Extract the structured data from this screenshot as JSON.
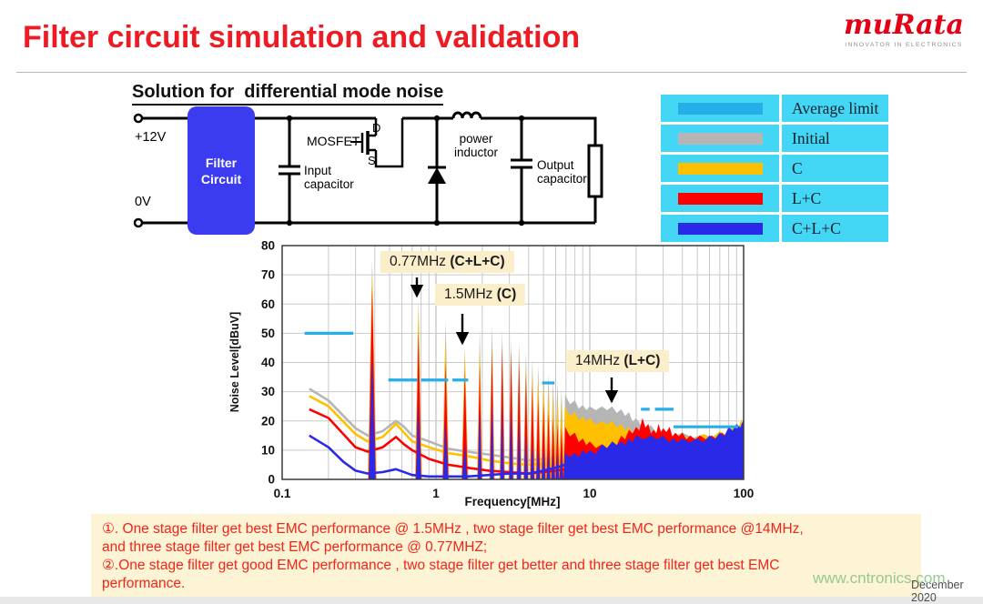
{
  "slide": {
    "title": "Filter circuit simulation and validation",
    "heading": "Solution for  differential mode noise"
  },
  "logo": {
    "brand": "muRata",
    "tagline": "INNOVATOR IN ELECTRONICS"
  },
  "circuit": {
    "labels": {
      "v_plus": "+12V",
      "v_zero": "0V",
      "filter_line1": "Filter",
      "filter_line2": "Circuit",
      "mosfet": "MOSFET",
      "drain": "D",
      "source": "S",
      "input_cap_line1": "Input",
      "input_cap_line2": "capacitor",
      "inductor_line1": "power",
      "inductor_line2": "inductor",
      "output_cap_line1": "Output",
      "output_cap_line2": "capacitor"
    },
    "filter_box_color": "#3b3bf0"
  },
  "legend": {
    "cell_bg": "#43d6f5",
    "rows": [
      {
        "label": "Average limit",
        "color": "#25aee8"
      },
      {
        "label": "Initial",
        "color": "#b5b5b5"
      },
      {
        "label": "C",
        "color": "#ffc002"
      },
      {
        "label": "L+C",
        "color": "#fe0000"
      },
      {
        "label": "C+L+C",
        "color": "#2b29e8"
      }
    ]
  },
  "chart_data": {
    "type": "line",
    "xlabel": "Frequency[MHz]",
    "ylabel": "Noise Level[dBuV]",
    "xscale": "log",
    "xlim": [
      0.1,
      100
    ],
    "ylim": [
      0,
      80
    ],
    "xticks": [
      "0.1",
      "1",
      "10",
      "100"
    ],
    "yticks": [
      0,
      10,
      20,
      30,
      40,
      50,
      60,
      70,
      80
    ],
    "grid": true,
    "switching_fundamental_mhz": 0.385,
    "series_colors": {
      "initial": "#b5b5b5",
      "c": "#ffc002",
      "lc": "#fe0000",
      "clc": "#2b29e8",
      "limit": "#25aee8"
    },
    "average_limit_segments_dbuv": [
      {
        "f1": 0.14,
        "f2": 0.29,
        "db": 50
      },
      {
        "f1": 0.49,
        "f2": 0.76,
        "db": 34
      },
      {
        "f1": 0.8,
        "f2": 1.2,
        "db": 34
      },
      {
        "f1": 1.28,
        "f2": 1.62,
        "db": 34
      },
      {
        "f1": 4.9,
        "f2": 5.9,
        "db": 33
      },
      {
        "f1": 21.5,
        "f2": 24.5,
        "db": 24
      },
      {
        "f1": 26.5,
        "f2": 35,
        "db": 24
      },
      {
        "f1": 35,
        "f2": 92,
        "db": 18
      }
    ],
    "series": [
      {
        "name": "Initial",
        "key": "initial",
        "floor_dbuv": [
          [
            0.15,
            31
          ],
          [
            0.2,
            27
          ],
          [
            0.3,
            17.5
          ],
          [
            0.36,
            15
          ],
          [
            0.45,
            16.5
          ],
          [
            0.55,
            20
          ],
          [
            0.62,
            18
          ],
          [
            0.7,
            15
          ],
          [
            0.9,
            13
          ],
          [
            1.2,
            10.5
          ],
          [
            1.6,
            9.5
          ],
          [
            2.2,
            8.5
          ],
          [
            3,
            7.5
          ],
          [
            4,
            6.5
          ],
          [
            5,
            7
          ],
          [
            6,
            7.5
          ],
          [
            6.9,
            8
          ]
        ],
        "harmonic_peaks_dbuv": [
          75,
          61,
          54,
          45,
          51,
          53,
          51,
          48,
          47,
          44,
          41,
          39,
          38,
          36,
          34,
          33,
          31,
          29
        ],
        "dense_envelope_dbuv": [
          [
            6.9,
            29
          ],
          [
            8,
            27
          ],
          [
            9,
            25.5
          ],
          [
            10,
            25
          ],
          [
            12,
            25
          ],
          [
            14,
            25
          ],
          [
            16,
            24
          ],
          [
            18,
            23
          ],
          [
            20,
            21
          ],
          [
            25,
            18.5
          ],
          [
            30,
            17
          ],
          [
            40,
            16
          ],
          [
            55,
            15.5
          ],
          [
            70,
            16
          ],
          [
            85,
            17.5
          ],
          [
            97,
            20
          ],
          [
            100,
            21
          ]
        ]
      },
      {
        "name": "C",
        "key": "c",
        "floor_dbuv": [
          [
            0.15,
            28.5
          ],
          [
            0.2,
            25
          ],
          [
            0.3,
            15.5
          ],
          [
            0.36,
            13
          ],
          [
            0.45,
            14.5
          ],
          [
            0.55,
            19
          ],
          [
            0.62,
            16
          ],
          [
            0.7,
            13
          ],
          [
            0.9,
            11
          ],
          [
            1.2,
            9
          ],
          [
            1.6,
            8
          ],
          [
            2.2,
            6.5
          ],
          [
            3,
            5.5
          ],
          [
            4,
            5
          ],
          [
            5,
            5.5
          ],
          [
            6,
            6
          ],
          [
            6.9,
            6.5
          ]
        ],
        "harmonic_peaks_dbuv": [
          72,
          59.5,
          49,
          44,
          46,
          47,
          46,
          44,
          42,
          40,
          37,
          35,
          34,
          32,
          30,
          29,
          27,
          25
        ],
        "dense_envelope_dbuv": [
          [
            6.9,
            25
          ],
          [
            8,
            23
          ],
          [
            9,
            21.5
          ],
          [
            10,
            21
          ],
          [
            12,
            20
          ],
          [
            14,
            20
          ],
          [
            16,
            19
          ],
          [
            18,
            18
          ],
          [
            20,
            17
          ],
          [
            25,
            15.5
          ],
          [
            30,
            14.5
          ],
          [
            40,
            15
          ],
          [
            55,
            15.5
          ],
          [
            70,
            16.5
          ],
          [
            85,
            18
          ],
          [
            97,
            20.5
          ],
          [
            100,
            21.5
          ]
        ]
      },
      {
        "name": "L+C",
        "key": "lc",
        "floor_dbuv": [
          [
            0.15,
            24
          ],
          [
            0.2,
            21
          ],
          [
            0.3,
            11
          ],
          [
            0.36,
            9.5
          ],
          [
            0.45,
            11
          ],
          [
            0.55,
            14.5
          ],
          [
            0.62,
            12
          ],
          [
            0.7,
            10
          ],
          [
            0.9,
            7
          ],
          [
            1.2,
            5
          ],
          [
            1.6,
            4
          ],
          [
            2.2,
            3
          ],
          [
            3,
            2.5
          ],
          [
            4,
            2
          ],
          [
            5,
            2.5
          ],
          [
            6,
            3
          ],
          [
            6.9,
            3.5
          ]
        ],
        "harmonic_peaks_dbuv": [
          66,
          51,
          40,
          37,
          39,
          45,
          46,
          44,
          41,
          36,
          32,
          28,
          26,
          23,
          21,
          19,
          18,
          18
        ],
        "dense_envelope_dbuv": [
          [
            6.9,
            18
          ],
          [
            8,
            16
          ],
          [
            9,
            14
          ],
          [
            10,
            13
          ],
          [
            12,
            12
          ],
          [
            14,
            13
          ],
          [
            16,
            15
          ],
          [
            18,
            17
          ],
          [
            20,
            18
          ],
          [
            22,
            21
          ],
          [
            24,
            19
          ],
          [
            26,
            17
          ],
          [
            28,
            19
          ],
          [
            30,
            17.5
          ],
          [
            33,
            18
          ],
          [
            36,
            16
          ],
          [
            40,
            16
          ],
          [
            45,
            15
          ],
          [
            52,
            15
          ],
          [
            62,
            15
          ],
          [
            72,
            16
          ],
          [
            82,
            17
          ],
          [
            92,
            18.5
          ],
          [
            100,
            20
          ]
        ]
      },
      {
        "name": "C+L+C",
        "key": "clc",
        "floor_dbuv": [
          [
            0.15,
            15
          ],
          [
            0.2,
            11
          ],
          [
            0.25,
            6
          ],
          [
            0.3,
            3
          ],
          [
            0.36,
            2
          ],
          [
            0.45,
            2.5
          ],
          [
            0.55,
            3.5
          ],
          [
            0.7,
            1.5
          ],
          [
            0.9,
            1
          ],
          [
            1.2,
            1
          ],
          [
            1.6,
            1
          ],
          [
            2.2,
            1.5
          ],
          [
            3,
            2
          ],
          [
            4,
            2
          ],
          [
            5,
            3
          ],
          [
            6,
            4
          ],
          [
            6.9,
            5
          ]
        ],
        "harmonic_peaks_dbuv": [
          41,
          27,
          20,
          12,
          24,
          26,
          25,
          24,
          20,
          16,
          12,
          10,
          10,
          9,
          9,
          9,
          9,
          9
        ],
        "dense_envelope_dbuv": [
          [
            6.9,
            9
          ],
          [
            8,
            9
          ],
          [
            9,
            10
          ],
          [
            10,
            10
          ],
          [
            12,
            12
          ],
          [
            14,
            13
          ],
          [
            16,
            13
          ],
          [
            18,
            14
          ],
          [
            20,
            15
          ],
          [
            25,
            15
          ],
          [
            30,
            15
          ],
          [
            35,
            14
          ],
          [
            40,
            14
          ],
          [
            50,
            14
          ],
          [
            60,
            15
          ],
          [
            70,
            16
          ],
          [
            80,
            18
          ],
          [
            90,
            19
          ],
          [
            100,
            20.5
          ]
        ]
      }
    ],
    "annotations": [
      {
        "plain": "0.77MHz ",
        "bold": "(C+L+C)"
      },
      {
        "plain": "1.5MHz ",
        "bold": "(C)"
      },
      {
        "plain": "14MHz ",
        "bold": "(L+C)"
      }
    ]
  },
  "notes": {
    "lines": [
      "①. One stage filter get best EMC performance @ 1.5MHz , two stage filter get best EMC performance @14MHz,",
      "and three stage filter get best EMC performance @ 0.77MHZ;",
      "②.One stage filter get good EMC performance , two stage filter get better and three stage filter get best EMC",
      "performance."
    ]
  },
  "footer": {
    "watermark": "www.cntronics.com",
    "date": "December 2020"
  }
}
